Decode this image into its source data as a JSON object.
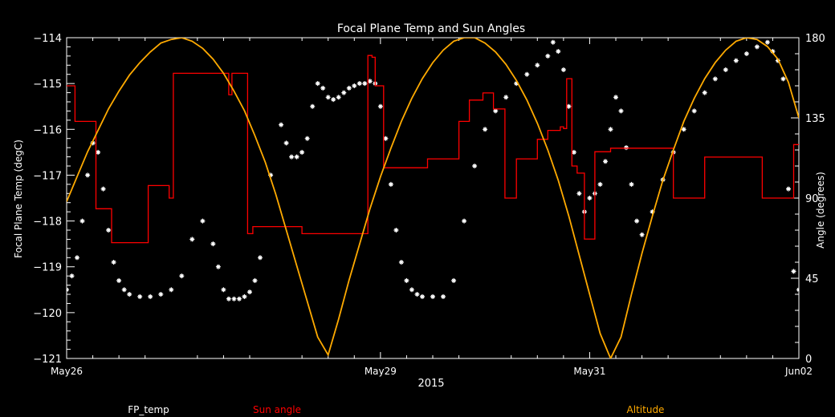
{
  "chart_data": {
    "type": "line",
    "title": "Focal Plane Temp and Sun Angles",
    "xlabel": "2015",
    "ylabel": "Focal Plane Temp (degC)",
    "y2label": "Angle (degrees)",
    "xlim": [
      0,
      7.0
    ],
    "ylim": [
      -121,
      -114
    ],
    "y2lim": [
      0,
      180
    ],
    "x_ticks": [
      {
        "x": 0,
        "label": "May26"
      },
      {
        "x": 3.0,
        "label": "May29"
      },
      {
        "x": 5.0,
        "label": "May31"
      },
      {
        "x": 7.0,
        "label": "Jun02"
      }
    ],
    "y_ticks": [
      -114,
      -115,
      -116,
      -117,
      -118,
      -119,
      -120,
      -121
    ],
    "y_tick_labels": [
      "−114",
      "−115",
      "−116",
      "−117",
      "−118",
      "−119",
      "−120",
      "−121"
    ],
    "y2_ticks": [
      0,
      45,
      90,
      135,
      180
    ],
    "legend": [
      {
        "label": "FP_temp",
        "color": "#ffffff"
      },
      {
        "label": "Sun angle",
        "color": "#ff0000"
      },
      {
        "label": "Altitude",
        "color": "#ffaa00"
      }
    ],
    "series": [
      {
        "name": "FP_temp",
        "axis": "left",
        "style": "markers",
        "color": "#ffffff",
        "x": [
          0.0,
          0.05,
          0.1,
          0.15,
          0.2,
          0.25,
          0.3,
          0.35,
          0.4,
          0.45,
          0.5,
          0.55,
          0.6,
          0.7,
          0.8,
          0.9,
          1.0,
          1.1,
          1.2,
          1.3,
          1.4,
          1.45,
          1.5,
          1.55,
          1.6,
          1.65,
          1.7,
          1.75,
          1.8,
          1.85,
          1.95,
          2.05,
          2.1,
          2.15,
          2.2,
          2.25,
          2.3,
          2.35,
          2.4,
          2.45,
          2.5,
          2.55,
          2.6,
          2.65,
          2.7,
          2.75,
          2.8,
          2.85,
          2.9,
          2.95,
          3.0,
          3.05,
          3.1,
          3.15,
          3.2,
          3.25,
          3.3,
          3.35,
          3.4,
          3.5,
          3.6,
          3.7,
          3.8,
          3.9,
          4.0,
          4.1,
          4.2,
          4.3,
          4.4,
          4.5,
          4.6,
          4.65,
          4.7,
          4.75,
          4.8,
          4.85,
          4.9,
          4.95,
          5.0,
          5.05,
          5.1,
          5.15,
          5.2,
          5.25,
          5.3,
          5.35,
          5.4,
          5.45,
          5.5,
          5.6,
          5.7,
          5.8,
          5.9,
          6.0,
          6.1,
          6.2,
          6.3,
          6.4,
          6.5,
          6.6,
          6.7,
          6.75,
          6.8,
          6.85,
          6.9,
          6.95,
          7.0
        ],
        "y": [
          -119.5,
          -119.2,
          -118.8,
          -118.0,
          -117.0,
          -116.3,
          -116.5,
          -117.3,
          -118.2,
          -118.9,
          -119.3,
          -119.5,
          -119.6,
          -119.65,
          -119.65,
          -119.6,
          -119.5,
          -119.2,
          -118.4,
          -118.0,
          -118.5,
          -119.0,
          -119.5,
          -119.7,
          -119.7,
          -119.7,
          -119.65,
          -119.55,
          -119.3,
          -118.8,
          -117.0,
          -115.9,
          -116.3,
          -116.6,
          -116.6,
          -116.5,
          -116.2,
          -115.5,
          -115.0,
          -115.1,
          -115.3,
          -115.35,
          -115.3,
          -115.2,
          -115.1,
          -115.05,
          -115.0,
          -115.0,
          -114.95,
          -115.0,
          -115.5,
          -116.2,
          -117.2,
          -118.2,
          -118.9,
          -119.3,
          -119.5,
          -119.6,
          -119.65,
          -119.65,
          -119.65,
          -119.3,
          -118.0,
          -116.8,
          -116.0,
          -115.6,
          -115.3,
          -115.0,
          -114.8,
          -114.6,
          -114.4,
          -114.1,
          -114.3,
          -114.7,
          -115.5,
          -116.5,
          -117.4,
          -117.8,
          -117.5,
          -117.4,
          -117.2,
          -116.7,
          -116.0,
          -115.3,
          -115.6,
          -116.4,
          -117.2,
          -118.0,
          -118.3,
          -117.8,
          -117.1,
          -116.5,
          -116.0,
          -115.6,
          -115.2,
          -114.9,
          -114.7,
          -114.5,
          -114.35,
          -114.2,
          -114.1,
          -114.3,
          -114.5,
          -114.9,
          -117.3,
          -119.1,
          -119.5
        ]
      },
      {
        "name": "Sun angle",
        "axis": "right",
        "style": "step",
        "color": "#ff0000",
        "x": [
          0.0,
          0.08,
          0.08,
          0.28,
          0.28,
          0.43,
          0.43,
          0.78,
          0.78,
          0.98,
          0.98,
          1.02,
          1.02,
          1.55,
          1.55,
          1.58,
          1.58,
          1.73,
          1.73,
          1.78,
          1.78,
          2.05,
          2.05,
          2.25,
          2.25,
          2.88,
          2.88,
          2.92,
          2.92,
          2.95,
          2.95,
          3.03,
          3.03,
          3.45,
          3.45,
          3.75,
          3.75,
          3.85,
          3.85,
          3.98,
          3.98,
          4.08,
          4.08,
          4.19,
          4.19,
          4.3,
          4.3,
          4.5,
          4.5,
          4.6,
          4.6,
          4.72,
          4.72,
          4.75,
          4.75,
          4.78,
          4.78,
          4.83,
          4.83,
          4.88,
          4.88,
          4.95,
          4.95,
          5.05,
          5.05,
          5.2,
          5.2,
          5.3,
          5.3,
          5.4,
          5.4,
          5.5,
          5.5,
          5.62,
          5.62,
          5.75,
          5.75,
          5.8,
          5.8,
          6.1,
          6.1,
          6.65,
          6.65,
          6.95,
          6.95,
          7.0
        ],
        "y": [
          153,
          153,
          133,
          133,
          84,
          84,
          65,
          65,
          97,
          97,
          90,
          90,
          160,
          160,
          148,
          148,
          160,
          160,
          70,
          70,
          74,
          74,
          74,
          74,
          70,
          70,
          170,
          170,
          169,
          169,
          153,
          153,
          107,
          107,
          112,
          112,
          133,
          133,
          145,
          145,
          149,
          149,
          140,
          140,
          90,
          90,
          112,
          112,
          123,
          123,
          128,
          128,
          130,
          130,
          129,
          129,
          157,
          157,
          108,
          108,
          104,
          104,
          67,
          67,
          116,
          116,
          118,
          118,
          118,
          118,
          118,
          118,
          118,
          118,
          118,
          118,
          118,
          118,
          90,
          90,
          113,
          113,
          90,
          90,
          120,
          120
        ]
      },
      {
        "name": "Altitude",
        "axis": "right",
        "style": "line",
        "color": "#ffaa00",
        "x": [
          0.0,
          0.1,
          0.2,
          0.3,
          0.4,
          0.5,
          0.6,
          0.7,
          0.8,
          0.9,
          1.0,
          1.1,
          1.2,
          1.3,
          1.4,
          1.5,
          1.6,
          1.7,
          1.8,
          1.9,
          2.0,
          2.1,
          2.2,
          2.3,
          2.4,
          2.5,
          2.6,
          2.7,
          2.8,
          2.9,
          3.0,
          3.1,
          3.2,
          3.3,
          3.4,
          3.5,
          3.6,
          3.7,
          3.8,
          3.9,
          4.0,
          4.1,
          4.2,
          4.3,
          4.4,
          4.5,
          4.6,
          4.7,
          4.8,
          4.9,
          5.0,
          5.1,
          5.2,
          5.3,
          5.4,
          5.5,
          5.6,
          5.7,
          5.8,
          5.9,
          6.0,
          6.1,
          6.2,
          6.3,
          6.4,
          6.5,
          6.6,
          6.7,
          6.8,
          6.9,
          7.0
        ],
        "y": [
          88,
          102,
          116,
          128,
          140,
          150,
          159,
          166,
          172,
          177,
          179,
          180,
          178,
          174,
          168,
          160,
          150,
          139,
          125,
          110,
          92,
          72,
          52,
          32,
          12,
          2,
          22,
          44,
          64,
          84,
          102,
          118,
          133,
          146,
          157,
          166,
          173,
          178,
          180,
          180,
          177,
          172,
          165,
          156,
          145,
          132,
          117,
          100,
          80,
          58,
          36,
          14,
          0,
          12,
          36,
          59,
          80,
          100,
          117,
          133,
          146,
          157,
          166,
          173,
          178,
          180,
          179,
          175,
          168,
          155,
          135
        ]
      }
    ]
  }
}
